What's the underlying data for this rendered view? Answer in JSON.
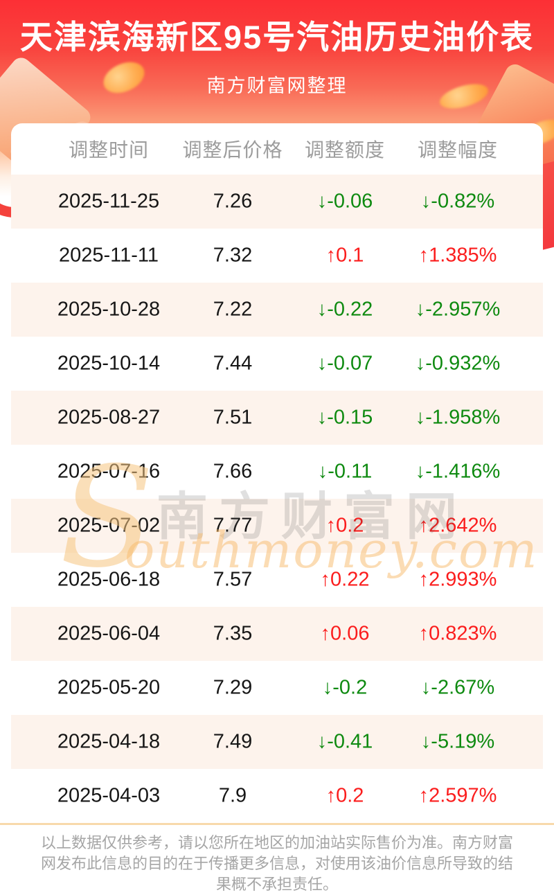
{
  "header": {
    "title": "天津滨海新区95号汽油历史油价表",
    "subtitle": "南方财富网整理",
    "background_top_color": "#fc2f35",
    "text_color": "#ffffff"
  },
  "chart_data": {
    "type": "table",
    "title": "天津滨海新区95号汽油历史油价表",
    "subtitle": "南方财富网整理",
    "columns": [
      "调整时间",
      "调整后价格",
      "调整额度",
      "调整幅度"
    ],
    "rows": [
      {
        "date": "2025-11-25",
        "price": "7.26",
        "change": "↓-0.06",
        "percent": "↓-0.82%",
        "direction": "down"
      },
      {
        "date": "2025-11-11",
        "price": "7.32",
        "change": "↑0.1",
        "percent": "↑1.385%",
        "direction": "up"
      },
      {
        "date": "2025-10-28",
        "price": "7.22",
        "change": "↓-0.22",
        "percent": "↓-2.957%",
        "direction": "down"
      },
      {
        "date": "2025-10-14",
        "price": "7.44",
        "change": "↓-0.07",
        "percent": "↓-0.932%",
        "direction": "down"
      },
      {
        "date": "2025-08-27",
        "price": "7.51",
        "change": "↓-0.15",
        "percent": "↓-1.958%",
        "direction": "down"
      },
      {
        "date": "2025-07-16",
        "price": "7.66",
        "change": "↓-0.11",
        "percent": "↓-1.416%",
        "direction": "down"
      },
      {
        "date": "2025-07-02",
        "price": "7.77",
        "change": "↑0.2",
        "percent": "↑2.642%",
        "direction": "up"
      },
      {
        "date": "2025-06-18",
        "price": "7.57",
        "change": "↑0.22",
        "percent": "↑2.993%",
        "direction": "up"
      },
      {
        "date": "2025-06-04",
        "price": "7.35",
        "change": "↑0.06",
        "percent": "↑0.823%",
        "direction": "up"
      },
      {
        "date": "2025-05-20",
        "price": "7.29",
        "change": "↓-0.2",
        "percent": "↓-2.67%",
        "direction": "down"
      },
      {
        "date": "2025-04-18",
        "price": "7.49",
        "change": "↓-0.41",
        "percent": "↓-5.19%",
        "direction": "down"
      },
      {
        "date": "2025-04-03",
        "price": "7.9",
        "change": "↑0.2",
        "percent": "↑2.597%",
        "direction": "up"
      }
    ],
    "colors": {
      "up": "#fb1d1d",
      "down": "#0e8a10",
      "row_alt_background": "#fdf3ec",
      "column_header_text": "#9c9c9c"
    },
    "layout_hints": {
      "grid": "off",
      "legend": "none",
      "row_striping": "odd-rows-peach"
    }
  },
  "watermark": {
    "initial": "S",
    "cn": "南方财富网",
    "en": "outhmoney.com"
  },
  "footer": {
    "disclaimer": "以上数据仅供参考，请以您所在地区的加油站实际售价为准。南方财富网发布此信息的目的在于传播更多信息，对使用该油价信息所导致的结果概不承担责任。",
    "divider_color": "#f8d9ab"
  }
}
